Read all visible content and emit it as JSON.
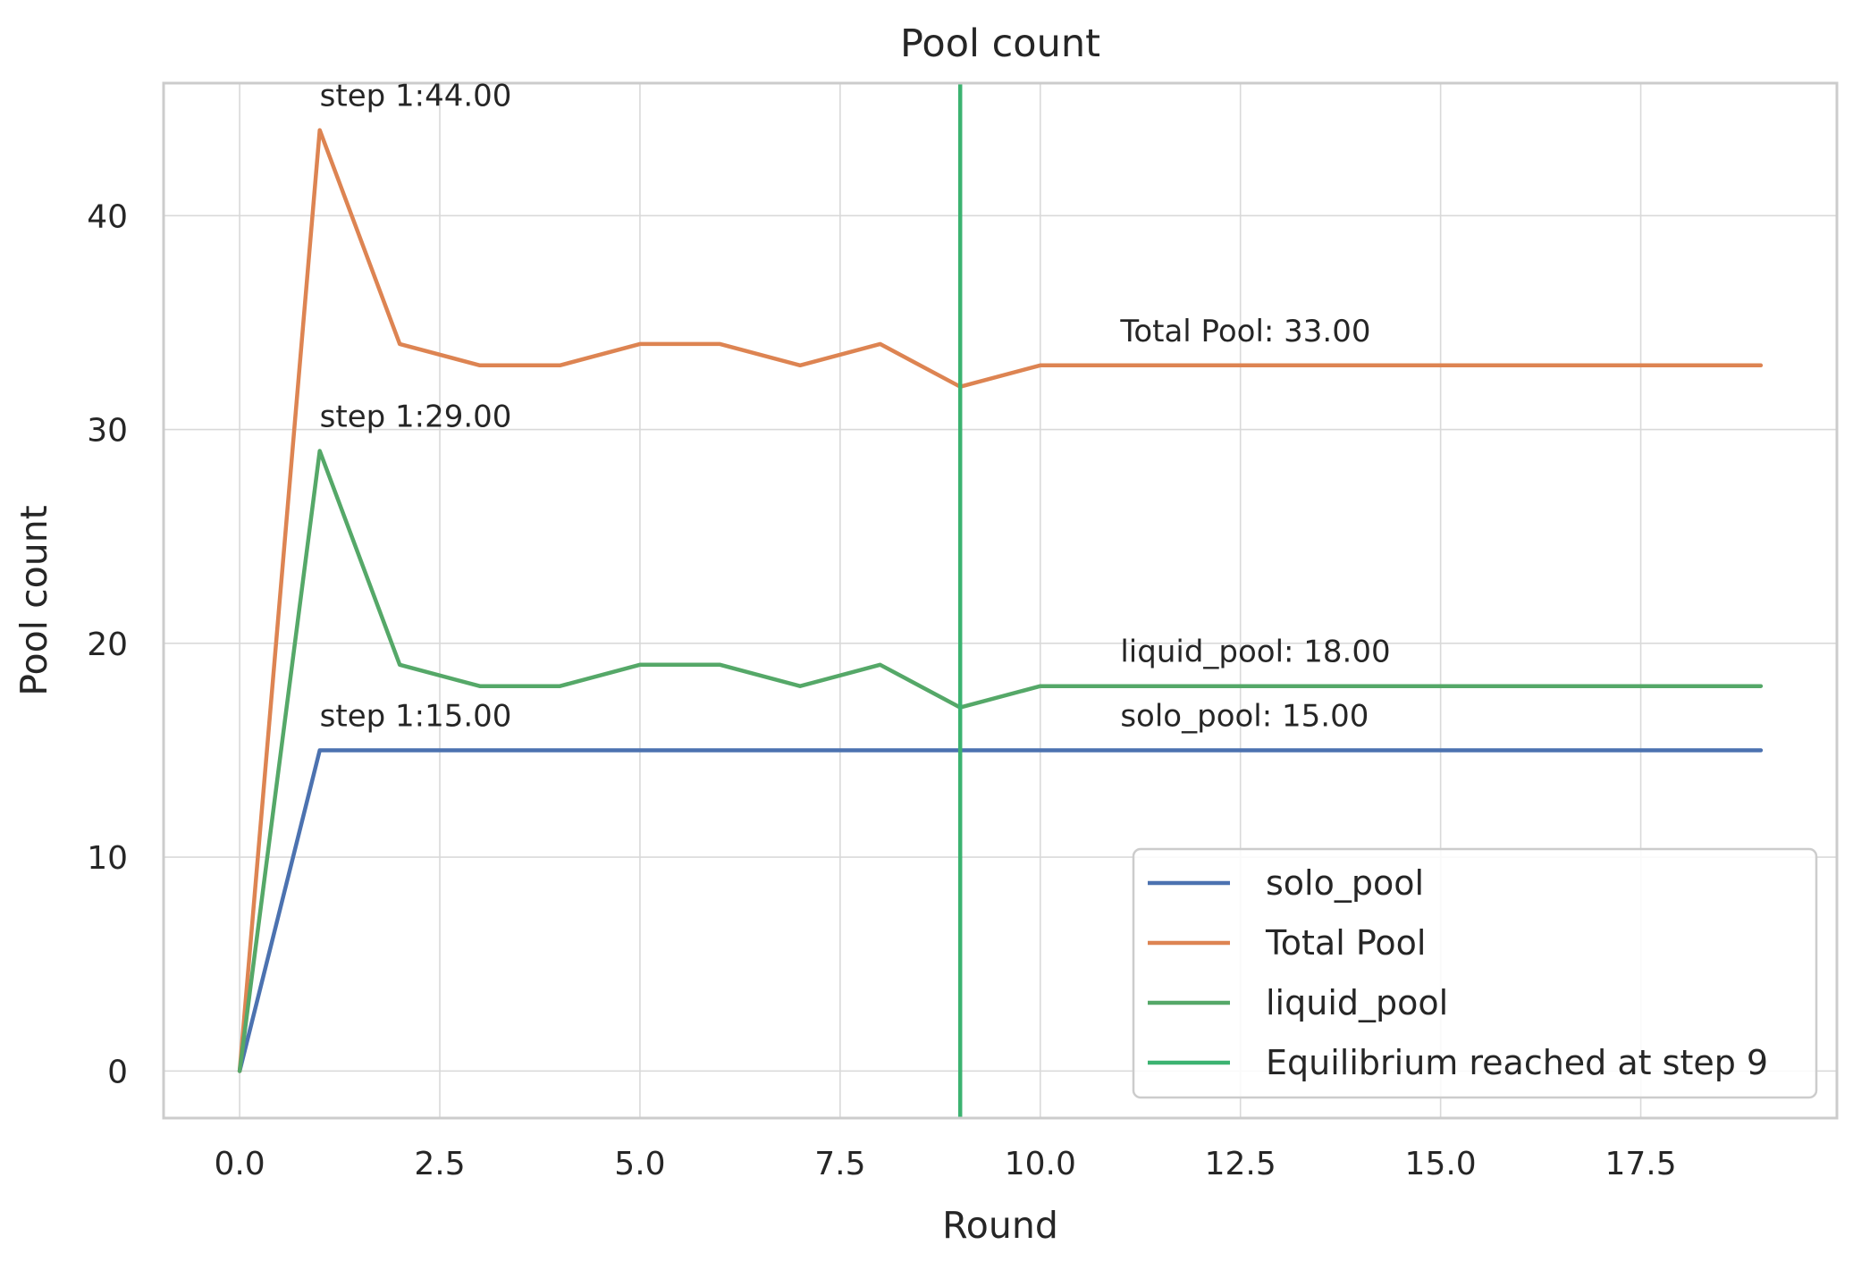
{
  "chart_data": {
    "type": "line",
    "title": "Pool count",
    "xlabel": "Round",
    "ylabel": "Pool count",
    "xlim": [
      -0.95,
      19.95
    ],
    "ylim": [
      -2.2,
      46.2
    ],
    "xticks": [
      0.0,
      2.5,
      5.0,
      7.5,
      10.0,
      12.5,
      15.0,
      17.5
    ],
    "xtick_labels": [
      "0.0",
      "2.5",
      "5.0",
      "7.5",
      "10.0",
      "12.5",
      "15.0",
      "17.5"
    ],
    "yticks": [
      0,
      10,
      20,
      30,
      40
    ],
    "ytick_labels": [
      "0",
      "10",
      "20",
      "30",
      "40"
    ],
    "grid": true,
    "legend_position": "lower-right",
    "x": [
      0,
      1,
      2,
      3,
      4,
      5,
      6,
      7,
      8,
      9,
      10,
      11,
      12,
      13,
      14,
      15,
      16,
      17,
      18,
      19
    ],
    "series": [
      {
        "name": "solo_pool",
        "color": "#4c72b0",
        "values": [
          0,
          15,
          15,
          15,
          15,
          15,
          15,
          15,
          15,
          15,
          15,
          15,
          15,
          15,
          15,
          15,
          15,
          15,
          15,
          15
        ]
      },
      {
        "name": "Total Pool",
        "color": "#dd8452",
        "values": [
          0,
          44,
          34,
          33,
          33,
          34,
          34,
          33,
          34,
          32,
          33,
          33,
          33,
          33,
          33,
          33,
          33,
          33,
          33,
          33
        ]
      },
      {
        "name": "liquid_pool",
        "color": "#55a868",
        "values": [
          0,
          29,
          19,
          18,
          18,
          19,
          19,
          18,
          19,
          17,
          18,
          18,
          18,
          18,
          18,
          18,
          18,
          18,
          18,
          18
        ]
      }
    ],
    "vline": {
      "x": 9,
      "name": "Equilibrium reached at step 9",
      "color": "#3cb371"
    },
    "annotations": [
      {
        "text": "step 1:44.00",
        "x": 1,
        "y": 44
      },
      {
        "text": "step 1:29.00",
        "x": 1,
        "y": 29
      },
      {
        "text": "step 1:15.00",
        "x": 1,
        "y": 15
      },
      {
        "text": "Total Pool: 33.00",
        "x": 11,
        "y": 33
      },
      {
        "text": "liquid_pool: 18.00",
        "x": 11,
        "y": 18
      },
      {
        "text": "solo_pool: 15.00",
        "x": 11,
        "y": 15
      }
    ]
  }
}
